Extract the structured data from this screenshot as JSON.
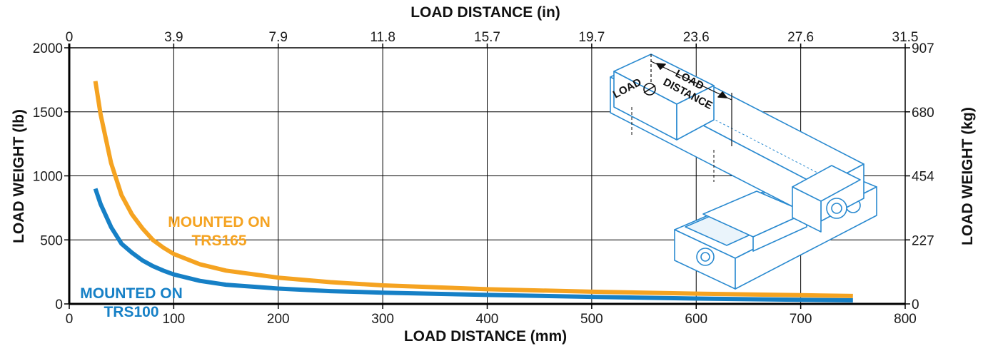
{
  "chart_data": {
    "type": "line",
    "title": "",
    "xlabel": "LOAD DISTANCE (mm)",
    "x2label": "LOAD DISTANCE (in)",
    "ylabel": "LOAD WEIGHT (lb)",
    "y2label": "LOAD WEIGHT (kg)",
    "xlim": [
      0,
      800
    ],
    "ylim": [
      0,
      2000
    ],
    "grid": true,
    "x_ticks": [
      "0",
      "100",
      "200",
      "300",
      "400",
      "500",
      "600",
      "700",
      "800"
    ],
    "x2_ticks": [
      "0",
      "3.9",
      "7.9",
      "11.8",
      "15.7",
      "19.7",
      "23.6",
      "27.6",
      "31.5"
    ],
    "y_ticks": [
      "0",
      "500",
      "1000",
      "1500",
      "2000"
    ],
    "y2_ticks": [
      "0",
      "227",
      "454",
      "680",
      "907"
    ],
    "series": [
      {
        "name": "MOUNTED ON TRS165",
        "label_lines": [
          "MOUNTED ON",
          "TRS165"
        ],
        "color": "#F5A321",
        "x": [
          25,
          30,
          40,
          50,
          60,
          70,
          80,
          90,
          100,
          125,
          150,
          200,
          250,
          300,
          400,
          500,
          600,
          700,
          750
        ],
        "y": [
          1740,
          1480,
          1100,
          850,
          700,
          590,
          500,
          440,
          390,
          310,
          260,
          205,
          170,
          145,
          115,
          95,
          80,
          68,
          62
        ]
      },
      {
        "name": "MOUNTED ON TRS100",
        "label_lines": [
          "MOUNTED ON",
          "TRS100"
        ],
        "color": "#1680C6",
        "x": [
          25,
          30,
          40,
          50,
          60,
          70,
          80,
          90,
          100,
          125,
          150,
          200,
          250,
          300,
          400,
          500,
          600,
          700,
          750
        ],
        "y": [
          900,
          780,
          600,
          470,
          400,
          340,
          295,
          260,
          230,
          180,
          150,
          120,
          100,
          88,
          70,
          55,
          42,
          32,
          28
        ]
      }
    ]
  },
  "inset": {
    "labels": [
      "LOAD",
      "LOAD",
      "DISTANCE"
    ],
    "icon": "linear-stage-illustration"
  }
}
